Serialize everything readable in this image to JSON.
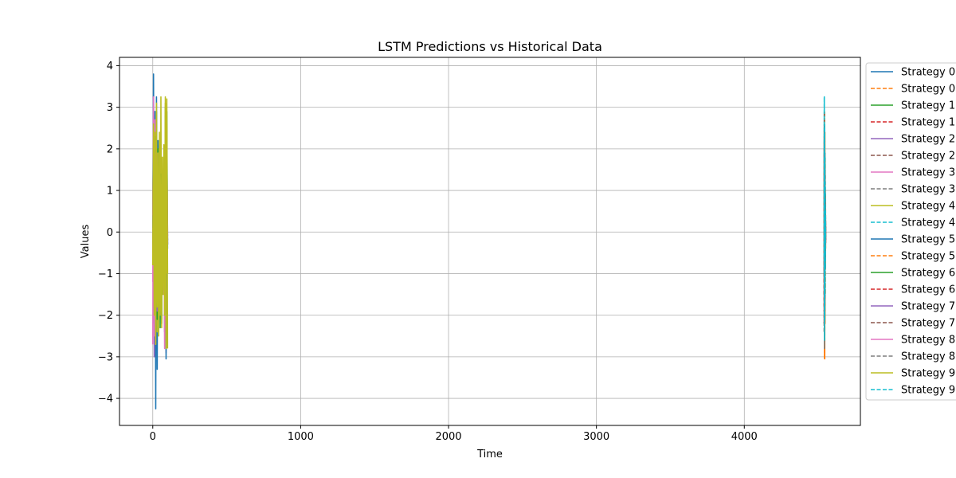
{
  "chart_data": {
    "type": "line",
    "title": "LSTM Predictions vs Historical Data",
    "xlabel": "Time",
    "ylabel": "Values",
    "xlim": [
      -225,
      4785
    ],
    "ylim": [
      -4.65,
      4.2
    ],
    "xticks": [
      0,
      1000,
      2000,
      3000,
      4000
    ],
    "xtick_labels": [
      "0",
      "1000",
      "2000",
      "3000",
      "4000"
    ],
    "yticks": [
      4,
      3,
      2,
      1,
      0,
      -1,
      -2,
      -3,
      -4
    ],
    "ytick_labels": [
      "4",
      "3",
      "2",
      "1",
      "0",
      "−1",
      "−2",
      "−3",
      "−4"
    ],
    "grid": true,
    "legend_position": "outside upper right",
    "series": [
      {
        "name": "Strategy 0",
        "color": "#1f77b4",
        "dash": "solid",
        "x": [
          0,
          5,
          10,
          15,
          20,
          25,
          30,
          35,
          40,
          45,
          50,
          55,
          60,
          65,
          70,
          75,
          80,
          85,
          90,
          95,
          100
        ],
        "values": [
          0.2,
          3.8,
          -1.5,
          2.9,
          -4.25,
          3.25,
          -3.3,
          2.2,
          -1.6,
          1.9,
          -0.8,
          1.4,
          -2.1,
          0.9,
          -1.2,
          1.5,
          -2.4,
          2.8,
          -0.5,
          1.1,
          -0.3
        ]
      },
      {
        "name": "Strategy 0",
        "color": "#ff7f0e",
        "dash": "dashed",
        "x": [
          4540,
          4541,
          4542,
          4543,
          4544,
          4545,
          4546,
          4547,
          4548,
          4549,
          4550
        ],
        "values": [
          -1.2,
          2.5,
          -2.9,
          2.9,
          -3.05,
          2.4,
          -2.2,
          1.8,
          -1.5,
          0.9,
          -0.4
        ]
      },
      {
        "name": "Strategy 1",
        "color": "#2ca02c",
        "dash": "solid",
        "x": [
          0,
          5,
          10,
          15,
          20,
          25,
          30,
          35,
          40,
          45,
          50,
          55,
          60,
          65,
          70,
          75,
          80,
          85,
          90,
          95,
          100
        ],
        "values": [
          -0.5,
          1.8,
          -1.9,
          2.1,
          -2.0,
          2.9,
          -1.5,
          1.9,
          -2.1,
          2.2,
          -2.3,
          1.3,
          -2.0,
          1.5,
          -1.2,
          0.9,
          -2.2,
          3.0,
          -1.9,
          2.9,
          -0.2
        ]
      },
      {
        "name": "Strategy 1",
        "color": "#d62728",
        "dash": "dashed",
        "x": [
          4540,
          4541,
          4542,
          4543,
          4544,
          4545,
          4546,
          4547,
          4548,
          4549,
          4550
        ],
        "values": [
          -2.2,
          2.6,
          -2.3,
          2.4,
          -1.9,
          1.9,
          -1.6,
          1.4,
          -0.9,
          0.7,
          -0.3
        ]
      },
      {
        "name": "Strategy 2",
        "color": "#9467bd",
        "dash": "solid",
        "x": [
          0,
          5,
          10,
          15,
          20,
          25,
          30,
          35,
          40,
          45,
          50,
          55,
          60,
          65,
          70,
          75,
          80,
          85,
          90,
          95,
          100
        ],
        "values": [
          0.3,
          2.4,
          -3.0,
          2.0,
          -1.5,
          1.7,
          -2.2,
          1.2,
          -1.8,
          0.9,
          -1.0,
          1.1,
          -1.6,
          0.8,
          -0.7,
          0.6,
          -1.3,
          1.0,
          -0.5,
          0.4,
          -0.2
        ]
      },
      {
        "name": "Strategy 2",
        "color": "#8c564b",
        "dash": "dashed",
        "x": [
          4540,
          4541,
          4542,
          4543,
          4544,
          4545,
          4546,
          4547,
          4548,
          4549,
          4550
        ],
        "values": [
          -1.5,
          1.9,
          -2.6,
          2.1,
          -1.8,
          1.5,
          -1.2,
          1.0,
          -0.8,
          0.5,
          -0.2
        ]
      },
      {
        "name": "Strategy 3",
        "color": "#e377c2",
        "dash": "solid",
        "x": [
          0,
          5,
          10,
          15,
          20,
          25,
          30,
          35,
          40,
          45,
          50,
          55,
          60,
          65,
          70,
          75,
          80,
          85,
          90,
          95,
          100
        ],
        "values": [
          -2.7,
          3.25,
          -2.0,
          2.7,
          -1.2,
          1.5,
          -0.9,
          1.1,
          -1.4,
          0.8,
          -0.6,
          0.9,
          -1.1,
          0.7,
          -0.5,
          0.6,
          -1.2,
          1.9,
          -2.9,
          2.0,
          -0.1
        ]
      },
      {
        "name": "Strategy 3",
        "color": "#7f7f7f",
        "dash": "dashed",
        "x": [
          4540,
          4541,
          4542,
          4543,
          4544,
          4545,
          4546,
          4547,
          4548,
          4549,
          4550
        ],
        "values": [
          -0.8,
          2.2,
          -2.4,
          1.9,
          -1.7,
          1.6,
          -1.1,
          0.9,
          -0.7,
          0.5,
          -0.3
        ]
      },
      {
        "name": "Strategy 4",
        "color": "#bcbd22",
        "dash": "solid",
        "x": [
          0,
          5,
          10,
          15,
          20,
          25,
          30,
          35,
          40,
          45,
          50,
          55,
          60,
          65,
          70,
          75,
          80,
          85,
          90,
          95,
          100
        ],
        "values": [
          0.5,
          2.0,
          -1.8,
          1.2,
          -0.8,
          3.1,
          -2.4,
          1.8,
          -1.6,
          2.4,
          -2.0,
          3.25,
          -1.8,
          1.3,
          -1.5,
          1.2,
          -2.3,
          3.25,
          -1.0,
          3.2,
          -2.8
        ]
      },
      {
        "name": "Strategy 4",
        "color": "#17becf",
        "dash": "dashed",
        "x": [
          4540,
          4541,
          4542,
          4543,
          4544,
          4545,
          4546,
          4547,
          4548,
          4549,
          4550
        ],
        "values": [
          -1.0,
          3.25,
          -2.7,
          2.5,
          -2.2,
          1.9,
          -1.4,
          1.1,
          -0.9,
          0.6,
          -0.2
        ]
      },
      {
        "name": "Strategy 5",
        "color": "#1f77b4",
        "dash": "solid",
        "x": [
          0,
          5,
          10,
          15,
          20,
          25,
          30,
          35,
          40,
          45,
          50,
          55,
          60,
          65,
          70,
          75,
          80,
          85,
          90,
          95,
          100
        ],
        "values": [
          0.1,
          1.5,
          -1.1,
          1.3,
          -2.6,
          2.0,
          -1.7,
          2.1,
          -1.4,
          1.0,
          -0.9,
          1.2,
          -0.7,
          0.8,
          -1.0,
          0.6,
          -0.5,
          1.4,
          -3.05,
          1.2,
          -0.4
        ]
      },
      {
        "name": "Strategy 5",
        "color": "#ff7f0e",
        "dash": "dashed",
        "x": [
          4540,
          4541,
          4542,
          4543,
          4544,
          4545,
          4546,
          4547,
          4548,
          4549,
          4550
        ],
        "values": [
          -0.5,
          1.6,
          -3.05,
          2.0,
          -2.4,
          1.7,
          -1.3,
          1.0,
          -0.8,
          0.4,
          -0.1
        ]
      },
      {
        "name": "Strategy 6",
        "color": "#2ca02c",
        "dash": "solid",
        "x": [
          0,
          5,
          10,
          15,
          20,
          25,
          30,
          35,
          40,
          45,
          50,
          55,
          60,
          65,
          70,
          75,
          80,
          85,
          90,
          95,
          100
        ],
        "values": [
          -0.3,
          1.0,
          -1.3,
          2.3,
          -1.9,
          1.6,
          -2.1,
          2.0,
          -1.5,
          1.1,
          -1.3,
          1.4,
          -2.2,
          1.2,
          -1.1,
          1.5,
          -1.9,
          2.2,
          -1.4,
          1.0,
          -0.3
        ]
      },
      {
        "name": "Strategy 6",
        "color": "#d62728",
        "dash": "dashed",
        "x": [
          4540,
          4541,
          4542,
          4543,
          4544,
          4545,
          4546,
          4547,
          4548,
          4549,
          4550
        ],
        "values": [
          -1.8,
          2.0,
          -2.1,
          1.8,
          -1.6,
          1.4,
          -1.0,
          0.8,
          -0.6,
          0.4,
          -0.2
        ]
      },
      {
        "name": "Strategy 7",
        "color": "#9467bd",
        "dash": "solid",
        "x": [
          0,
          5,
          10,
          15,
          20,
          25,
          30,
          35,
          40,
          45,
          50,
          55,
          60,
          65,
          70,
          75,
          80,
          85,
          90,
          95,
          100
        ],
        "values": [
          0.4,
          2.1,
          -2.2,
          1.7,
          -1.4,
          1.3,
          -1.9,
          1.1,
          -1.0,
          0.9,
          -1.2,
          0.8,
          -0.9,
          0.7,
          -0.6,
          0.8,
          -1.0,
          1.3,
          -0.7,
          0.5,
          -0.1
        ]
      },
      {
        "name": "Strategy 7",
        "color": "#8c564b",
        "dash": "dashed",
        "x": [
          4540,
          4541,
          4542,
          4543,
          4544,
          4545,
          4546,
          4547,
          4548,
          4549,
          4550
        ],
        "values": [
          -2.4,
          2.9,
          -2.0,
          2.2,
          -1.5,
          1.6,
          -1.1,
          0.9,
          -0.6,
          0.3,
          0.0
        ]
      },
      {
        "name": "Strategy 8",
        "color": "#e377c2",
        "dash": "solid",
        "x": [
          0,
          5,
          10,
          15,
          20,
          25,
          30,
          35,
          40,
          45,
          50,
          55,
          60,
          65,
          70,
          75,
          80,
          85,
          90,
          95,
          100
        ],
        "values": [
          -1.2,
          3.0,
          -2.5,
          2.2,
          -1.7,
          1.9,
          -1.3,
          1.0,
          -1.5,
          0.9,
          -0.8,
          1.0,
          -1.2,
          0.6,
          -0.9,
          0.7,
          -2.8,
          2.1,
          -1.6,
          1.2,
          -0.3
        ]
      },
      {
        "name": "Strategy 8",
        "color": "#7f7f7f",
        "dash": "dashed",
        "x": [
          4540,
          4541,
          4542,
          4543,
          4544,
          4545,
          4546,
          4547,
          4548,
          4549,
          4550
        ],
        "values": [
          -1.1,
          2.3,
          -2.8,
          2.4,
          -1.9,
          1.5,
          -1.3,
          0.9,
          -0.7,
          0.4,
          -0.2
        ]
      },
      {
        "name": "Strategy 9",
        "color": "#bcbd22",
        "dash": "solid",
        "x": [
          0,
          5,
          10,
          15,
          20,
          25,
          30,
          35,
          40,
          45,
          50,
          55,
          60,
          65,
          70,
          75,
          80,
          85,
          90,
          95,
          100
        ],
        "values": [
          -0.8,
          2.6,
          -2.0,
          2.4,
          -2.7,
          2.2,
          -1.8,
          1.9,
          -2.5,
          2.0,
          -1.9,
          1.5,
          -2.3,
          1.8,
          -1.4,
          2.1,
          -2.0,
          3.1,
          -2.8,
          2.6,
          -1.0
        ]
      },
      {
        "name": "Strategy 9",
        "color": "#17becf",
        "dash": "dashed",
        "x": [
          4540,
          4541,
          4542,
          4543,
          4544,
          4545,
          4546,
          4547,
          4548,
          4549,
          4550
        ],
        "values": [
          -0.6,
          3.25,
          -2.6,
          2.6,
          -2.1,
          1.8,
          -1.5,
          1.2,
          -0.8,
          0.5,
          -0.1
        ]
      }
    ]
  }
}
